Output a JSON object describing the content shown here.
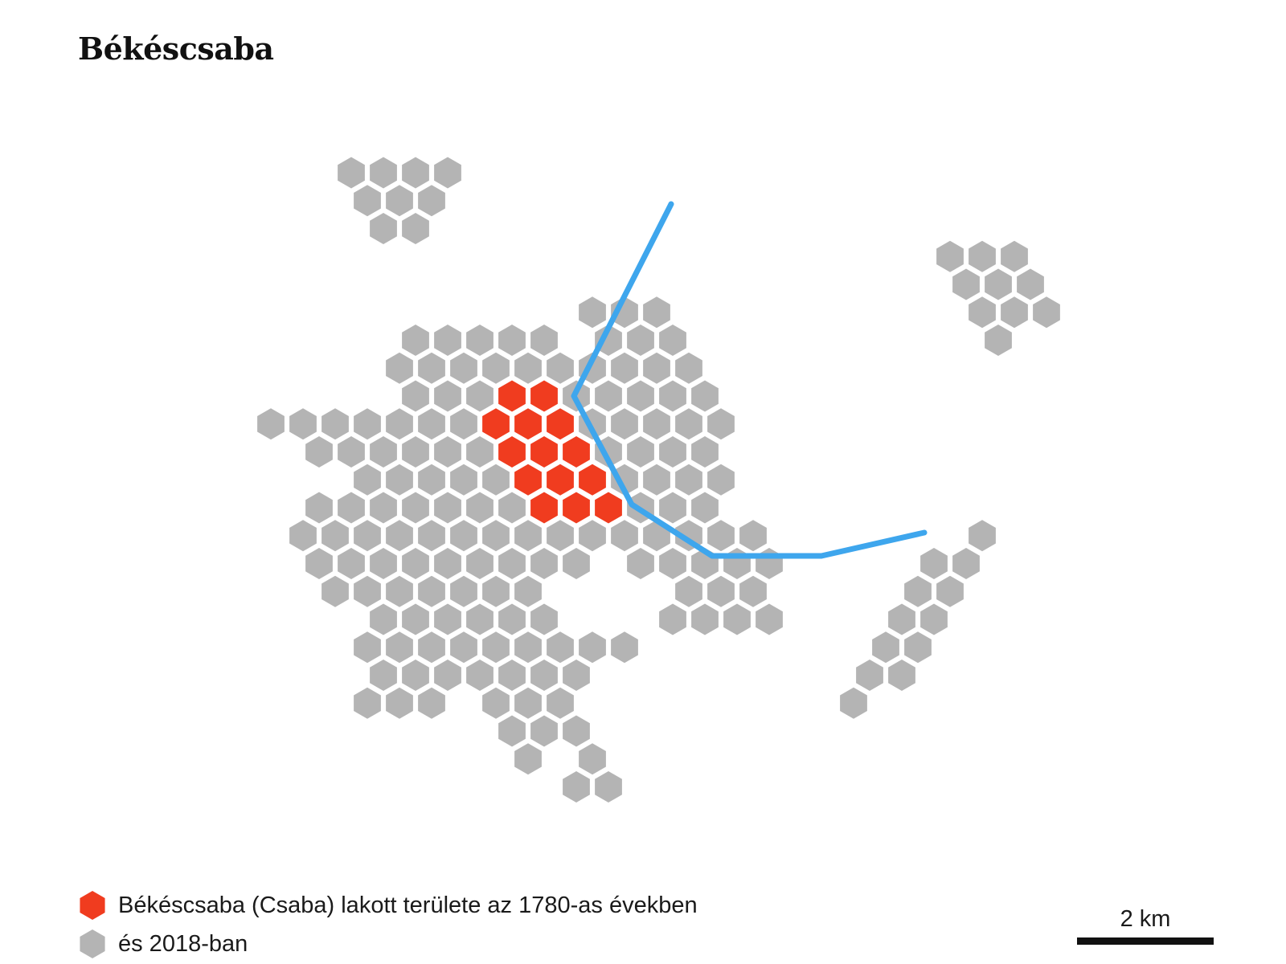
{
  "title": "Békéscsaba",
  "legend": {
    "historic_label": "Békéscsaba (Csaba) lakott területe az 1780-as években",
    "current_label": "és 2018-ban"
  },
  "scale": {
    "label": "2 km"
  },
  "colors": {
    "historic": "#f03c1f",
    "current": "#b4b4b4",
    "river": "#3ea6ed",
    "text": "#1a1a1a"
  },
  "icons": {
    "historic_marker": "red-hexagon-icon",
    "current_marker": "gray-hexagon-icon"
  }
}
